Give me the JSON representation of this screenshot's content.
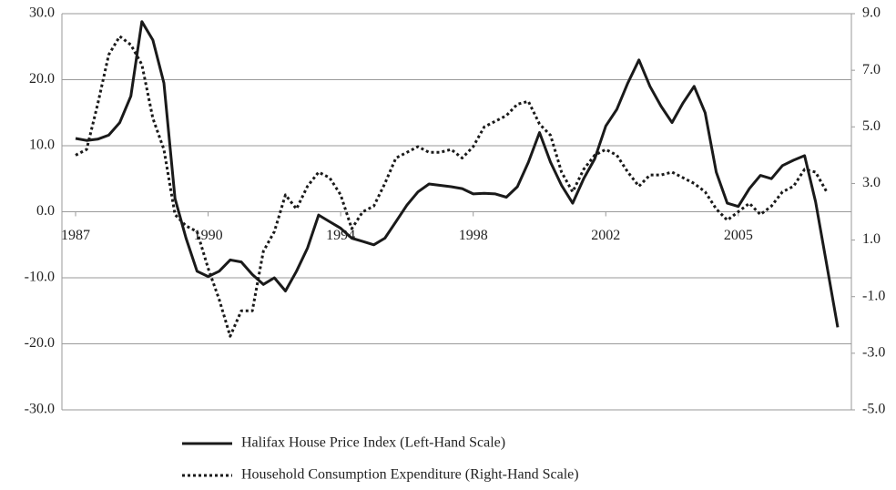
{
  "chart_data": {
    "type": "line",
    "categories": [
      "1987",
      null,
      null,
      null,
      null,
      null,
      null,
      null,
      null,
      null,
      null,
      null,
      "1990",
      null,
      null,
      null,
      null,
      null,
      null,
      null,
      null,
      null,
      null,
      null,
      "1994",
      null,
      null,
      null,
      null,
      null,
      null,
      null,
      null,
      null,
      null,
      null,
      "1998",
      null,
      null,
      null,
      null,
      null,
      null,
      null,
      null,
      null,
      null,
      null,
      "2002",
      null,
      null,
      null,
      null,
      null,
      null,
      null,
      null,
      null,
      null,
      null,
      "2005",
      null,
      null,
      null,
      null,
      null,
      null,
      null,
      null,
      null
    ],
    "series": [
      {
        "name": "Halifax House Price Index (Left-Hand Scale)",
        "color": "#1a1a1a",
        "line_style": "solid",
        "values": [
          11.1,
          10.8,
          11,
          11.6,
          13.5,
          17.5,
          28.8,
          26,
          19.5,
          2,
          -4,
          -9,
          -9.8,
          -9,
          -7.3,
          -7.6,
          -9.5,
          -11,
          -10,
          -12,
          -9,
          -5.5,
          -0.5,
          -1.5,
          -2.5,
          -4,
          -4.5,
          -5,
          -4,
          -1.5,
          1,
          3,
          4.2,
          4,
          3.8,
          3.5,
          2.7,
          2.8,
          2.7,
          2.2,
          3.8,
          7.5,
          12,
          7.5,
          4,
          1.3,
          5,
          8,
          13,
          15.5,
          19.5,
          23,
          19,
          16,
          13.5,
          16.5,
          19,
          15,
          6,
          1.3,
          0.8,
          3.5,
          5.5,
          5,
          7,
          7.8,
          8.5,
          1.5,
          -8,
          -17.5
        ]
      },
      {
        "name": "Household Consumption Expenditure (Right-Hand Scale)",
        "color": "#1a1a1a",
        "line_style": "dotted",
        "axis": "y2",
        "values": [
          4,
          4.2,
          5.8,
          7.55,
          8.2,
          7.9,
          7.2,
          5.3,
          4.2,
          1.9,
          1.5,
          1.3,
          0,
          -1.1,
          -2.4,
          -1.5,
          -1.5,
          0.6,
          1.3,
          2.6,
          2.1,
          2.9,
          3.4,
          3.2,
          2.6,
          1.4,
          2,
          2.2,
          3,
          3.9,
          4.1,
          4.3,
          4.1,
          4.1,
          4.2,
          3.9,
          4.3,
          5,
          5.2,
          5.4,
          5.8,
          5.9,
          5.1,
          4.7,
          3.4,
          2.7,
          3.5,
          4,
          4.2,
          4,
          3.4,
          2.9,
          3.3,
          3.3,
          3.4,
          3.2,
          3,
          2.7,
          2.1,
          1.7,
          2,
          2.3,
          1.9,
          2.2,
          2.7,
          2.9,
          3.5,
          3.4,
          2.7,
          null
        ]
      }
    ],
    "ylim": [
      -30,
      30
    ],
    "yticks": [
      {
        "value": 30,
        "label": "30.0"
      },
      {
        "value": 20,
        "label": "20.0"
      },
      {
        "value": 10,
        "label": "10.0"
      },
      {
        "value": 0,
        "label": "0.0"
      },
      {
        "value": -10,
        "label": "-10.0"
      },
      {
        "value": -20,
        "label": "-20.0"
      },
      {
        "value": -30,
        "label": "-30.0"
      }
    ],
    "y2lim": [
      -5,
      9
    ],
    "y2ticks": [
      {
        "value": 9,
        "label": "9.0"
      },
      {
        "value": 7,
        "label": "7.0"
      },
      {
        "value": 5,
        "label": "5.0"
      },
      {
        "value": 3,
        "label": "3.0"
      },
      {
        "value": 1,
        "label": "1.0"
      },
      {
        "value": -1,
        "label": "-1.0"
      },
      {
        "value": -3,
        "label": "-3.0"
      },
      {
        "value": -5,
        "label": "-5.0"
      }
    ],
    "grid": true,
    "legend": "bottom"
  }
}
